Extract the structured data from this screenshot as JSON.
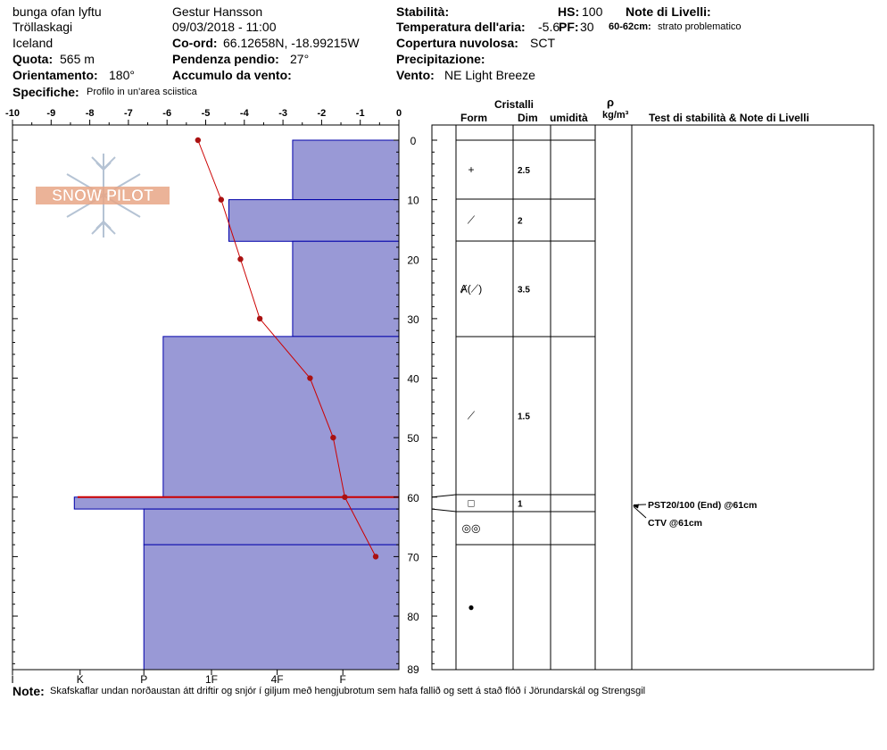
{
  "header": {
    "location": "bunga ofan lyftu",
    "range": "Tröllaskagi",
    "country": "Iceland",
    "observer": "Gestur Hansson",
    "datetime": "09/03/2018 - 11:00",
    "coord_label": "Co-ord:",
    "coord_value": "66.12658N, -18.99215W",
    "slope_label": "Pendenza pendio:",
    "slope_value": "27°",
    "elev_label": "Quota:",
    "elev_value": "565 m",
    "aspect_label": "Orientamento:",
    "aspect_value": "180°",
    "wind_load_label": "Accumulo da vento:",
    "specifics_label": "Specifiche:",
    "specifics_value": "Profilo in un'area sciistica",
    "stability_label": "Stabilità:",
    "air_temp_label": "Temperatura dell'aria:",
    "air_temp_value": "-5.6",
    "cloud_label": "Copertura nuvolosa:",
    "cloud_value": "SCT",
    "precip_label": "Precipitazione:",
    "wind_label": "Vento:",
    "wind_value": "NE Light Breeze",
    "hs_label": "HS:",
    "hs_value": "100",
    "pf_label": "PF:",
    "pf_value": "30",
    "layer_notes_label": "Note di Livelli:",
    "layer_note_range": "60-62cm:",
    "layer_note_text": "strato problematico"
  },
  "logo_text": "SNOW PILOT",
  "table_headers": {
    "cristalli": "Cristalli",
    "form": "Form",
    "dim": "Dim",
    "umidita": "umidità",
    "rho": "ρ",
    "rho_unit": "kg/m³",
    "tests": "Test di stabilità & Note di Livelli"
  },
  "note": {
    "label": "Note:",
    "text": "Skafskaflar undan norðaustan átt driftir og snjór í giljum með hengjubrotum sem hafa fallið og sett á stað flóð í Jörundarskál  og Strengsgil"
  },
  "chart_data": {
    "type": "snow-profile",
    "temperature_axis": {
      "ticks": [
        -10,
        -9,
        -8,
        -7,
        -6,
        -5,
        -4,
        -3,
        -2,
        -1,
        0
      ],
      "range": [
        -10,
        0
      ]
    },
    "depth_axis": {
      "ticks": [
        0,
        10,
        20,
        30,
        40,
        50,
        60,
        70,
        80
      ],
      "end_label": "89",
      "range": [
        0,
        89
      ]
    },
    "hardness_axis": {
      "labels": [
        "I",
        "K",
        "P",
        "1F",
        "4F",
        "F"
      ],
      "values": [
        10,
        8.25,
        6.6,
        4.85,
        3.15,
        1.45
      ]
    },
    "temperature_profile": [
      {
        "depth": 0,
        "temp": -5.2
      },
      {
        "depth": 10,
        "temp": -4.6
      },
      {
        "depth": 20,
        "temp": -4.1
      },
      {
        "depth": 30,
        "temp": -3.6
      },
      {
        "depth": 40,
        "temp": -2.3
      },
      {
        "depth": 50,
        "temp": -1.7
      },
      {
        "depth": 60,
        "temp": -1.4
      },
      {
        "depth": 70,
        "temp": -0.6
      }
    ],
    "layers": [
      {
        "top": 0,
        "bottom": 10,
        "hardness": 2.75,
        "form": "+",
        "size": "2.5"
      },
      {
        "top": 10,
        "bottom": 17,
        "hardness": 4.4,
        "form": "⟋",
        "size": "2"
      },
      {
        "top": 17,
        "bottom": 33,
        "hardness": 2.75,
        "form": "Ⱥ(⟋)",
        "size": "3.5"
      },
      {
        "top": 33,
        "bottom": 60,
        "hardness": 6.1,
        "form": "⟋",
        "size": "1.5"
      },
      {
        "top": 60,
        "bottom": 62,
        "hardness": 8.4,
        "form": "□",
        "size": "1"
      },
      {
        "top": 62,
        "bottom": 68,
        "hardness": 6.6,
        "form": "◎◎",
        "size": ""
      },
      {
        "top": 68,
        "bottom": 89,
        "hardness": 6.6,
        "form": "●",
        "size": ""
      }
    ],
    "problem_layer_depth": 60,
    "test_results": [
      {
        "depth": 61,
        "text": "PST20/100 (End) @61cm"
      },
      {
        "depth": 61,
        "text": "CTV @61cm"
      }
    ]
  },
  "colors": {
    "layer_fill": "#9999d6",
    "layer_line": "#0000aa",
    "temp_line": "#cc0000",
    "temp_point": "#aa1111",
    "logo_orange": "#e8a686",
    "logo_snowflake": "#b5c3d4"
  }
}
